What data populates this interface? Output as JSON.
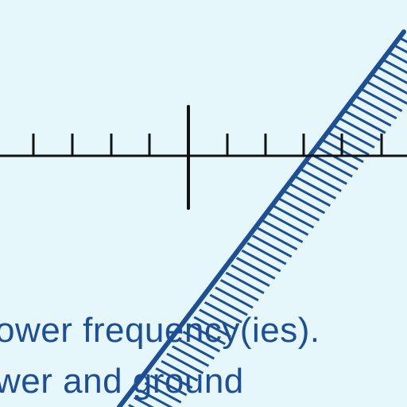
{
  "colors": {
    "background": "#e6f7fb",
    "axis": "#111111",
    "accent": "#1c4f96"
  },
  "caption": {
    "line1": "ower frequency(ies).",
    "line2": "wer and ground"
  }
}
